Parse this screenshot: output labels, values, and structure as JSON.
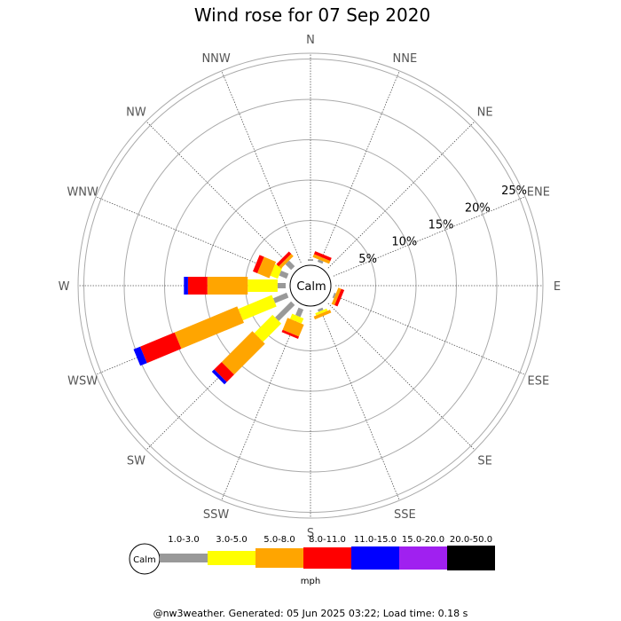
{
  "title": "Wind rose for 07 Sep 2020",
  "footer": "@nw3weather. Generated: 05 Jun 2025 03:22; Load time: 0.18 s",
  "chart_data": {
    "type": "windrose",
    "title": "Wind rose for 07 Sep 2020",
    "directions": [
      "N",
      "NNE",
      "NE",
      "ENE",
      "E",
      "ESE",
      "SE",
      "SSE",
      "S",
      "SSW",
      "SW",
      "WSW",
      "W",
      "WNW",
      "NW",
      "NNW"
    ],
    "ring_labels": [
      "5%",
      "10%",
      "15%",
      "20%",
      "25%"
    ],
    "ring_values": [
      5,
      10,
      15,
      20,
      25
    ],
    "calm_label": "Calm",
    "units": "mph",
    "speed_bins": [
      "1.0-3.0",
      "3.0-5.0",
      "5.0-8.0",
      "8.0-11.0",
      "11.0-15.0",
      "15.0-20.0",
      "20.0-50.0"
    ],
    "bin_colors": [
      "#999999",
      "#ffff00",
      "#ffa500",
      "#ff0000",
      "#0000ff",
      "#a020f0",
      "#000000"
    ],
    "stacks": {
      "N": [
        0.2,
        0,
        0,
        0,
        0,
        0,
        0
      ],
      "NNE": [
        0.3,
        0,
        0.4,
        0.4,
        0,
        0,
        0
      ],
      "NE": [
        0,
        0,
        0,
        0,
        0,
        0,
        0
      ],
      "ENE": [
        0,
        0,
        0,
        0,
        0,
        0,
        0
      ],
      "E": [
        0,
        0,
        0,
        0,
        0,
        0,
        0
      ],
      "ESE": [
        0.2,
        0,
        0.4,
        0.4,
        0,
        0,
        0
      ],
      "SE": [
        0,
        0,
        0,
        0,
        0,
        0,
        0
      ],
      "SSE": [
        0.3,
        0.3,
        0.4,
        0,
        0,
        0,
        0
      ],
      "S": [
        0,
        0,
        0,
        0,
        0,
        0,
        0
      ],
      "SSW": [
        1.0,
        0.7,
        1.6,
        0.3,
        0,
        0,
        0
      ],
      "SW": [
        2.8,
        3.2,
        5.4,
        1.3,
        0.4,
        0,
        0
      ],
      "WSW": [
        1.8,
        4.5,
        8.4,
        4.6,
        0.9,
        0,
        0
      ],
      "W": [
        1.0,
        3.7,
        5.0,
        2.4,
        0.5,
        0,
        0
      ],
      "WNW": [
        1.0,
        1.0,
        1.6,
        0.6,
        0,
        0,
        0
      ],
      "NW": [
        1.0,
        0,
        0.4,
        0.4,
        0,
        0,
        0
      ],
      "NNW": [
        0,
        0,
        0,
        0,
        0,
        0,
        0
      ]
    }
  }
}
